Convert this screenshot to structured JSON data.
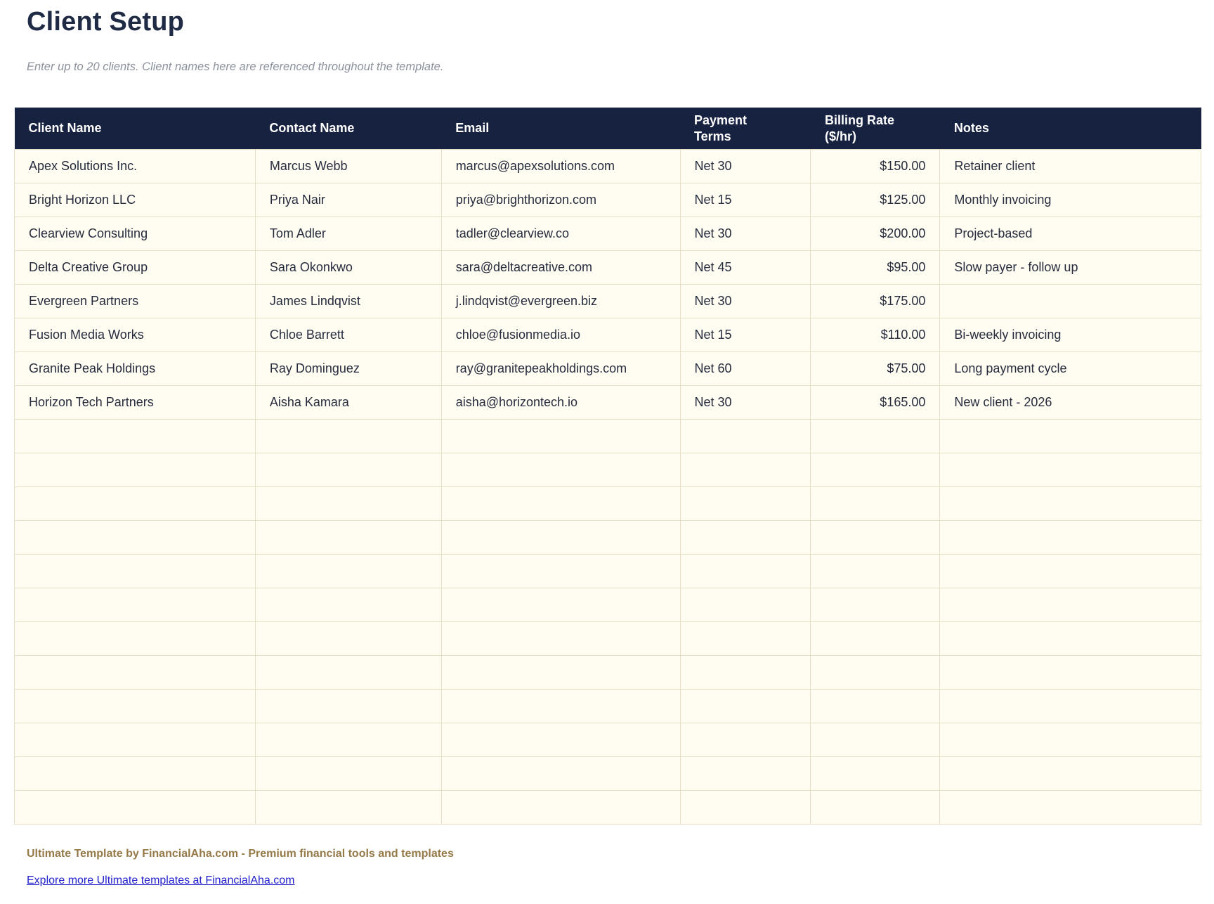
{
  "page": {
    "title": "Client Setup",
    "subtitle": "Enter up to 20 clients. Client names here are referenced throughout the template."
  },
  "table": {
    "columns": [
      {
        "key": "client-name",
        "label": "Client Name"
      },
      {
        "key": "contact-name",
        "label": "Contact Name"
      },
      {
        "key": "email",
        "label": "Email"
      },
      {
        "key": "payment-terms",
        "label": "Payment\nTerms"
      },
      {
        "key": "billing-rate",
        "label": "Billing Rate\n($/hr)"
      },
      {
        "key": "notes",
        "label": "Notes"
      }
    ],
    "rows": [
      [
        "Apex Solutions Inc.",
        "Marcus Webb",
        "marcus@apexsolutions.com",
        "Net 30",
        "$150.00",
        "Retainer client"
      ],
      [
        "Bright Horizon LLC",
        "Priya Nair",
        "priya@brighthorizon.com",
        "Net 15",
        "$125.00",
        "Monthly invoicing"
      ],
      [
        "Clearview Consulting",
        "Tom Adler",
        "tadler@clearview.co",
        "Net 30",
        "$200.00",
        "Project-based"
      ],
      [
        "Delta Creative Group",
        "Sara Okonkwo",
        "sara@deltacreative.com",
        "Net 45",
        "$95.00",
        "Slow payer - follow up"
      ],
      [
        "Evergreen Partners",
        "James Lindqvist",
        "j.lindqvist@evergreen.biz",
        "Net 30",
        "$175.00",
        ""
      ],
      [
        "Fusion Media Works",
        "Chloe Barrett",
        "chloe@fusionmedia.io",
        "Net 15",
        "$110.00",
        "Bi-weekly invoicing"
      ],
      [
        "Granite Peak Holdings",
        "Ray Dominguez",
        "ray@granitepeakholdings.com",
        "Net 60",
        "$75.00",
        "Long payment cycle"
      ],
      [
        "Horizon Tech Partners",
        "Aisha Kamara",
        "aisha@horizontech.io",
        "Net 30",
        "$165.00",
        "New client - 2026"
      ]
    ],
    "empty_row_count": 12,
    "column_width_percents": [
      20.3,
      15.68,
      20.12,
      11.01,
      10.89,
      22.0
    ]
  },
  "footer": {
    "brand": "Ultimate Template by FinancialAha.com - Premium financial tools and templates",
    "link": "Explore more Ultimate templates at FinancialAha.com"
  },
  "colors": {
    "header_bg": "#172140",
    "header_text": "#ffffff",
    "row_bg": "#fffcf2",
    "grid_border": "#e6dec6",
    "title_text": "#1f2a44",
    "subtitle_text": "#8c929d",
    "brand_text": "#957a48",
    "link_text": "#2222cc"
  }
}
